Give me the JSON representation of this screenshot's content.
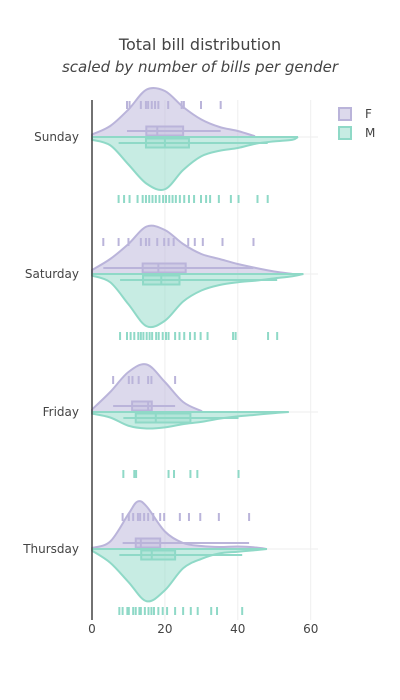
{
  "chart_data": {
    "type": "violin",
    "title": "Total bill distribution",
    "subtitle": "scaled by number of bills per gender",
    "xlabel": "",
    "ylabel": "",
    "xlim": [
      0,
      62
    ],
    "xticks": [
      0,
      20,
      40,
      60
    ],
    "categories": [
      "Sunday",
      "Saturday",
      "Friday",
      "Thursday"
    ],
    "legend": {
      "position": "top-right",
      "entries": [
        "F",
        "M"
      ]
    },
    "colors": {
      "F": "#bab4da",
      "M": "#8fd9c7",
      "axis": "#444444",
      "grid": "#eeeeee"
    },
    "series": [
      {
        "name": "F",
        "side": "positive",
        "groups": [
          {
            "day": "Sunday",
            "min": 9.6,
            "q1": 14.9,
            "median": 17.9,
            "q3": 25.0,
            "max": 35.3,
            "density_x": [
              0,
              5,
              10,
              15,
              20,
              25,
              30,
              35,
              40,
              44.5
            ],
            "density_h": [
              0.05,
              0.22,
              0.55,
              0.95,
              0.92,
              0.6,
              0.35,
              0.2,
              0.12,
              0.02
            ],
            "rug": [
              9.6,
              10.3,
              13.4,
              14.8,
              15.4,
              16.4,
              17.3,
              18.2,
              20.9,
              24.6,
              25.2,
              29.9,
              35.3
            ]
          },
          {
            "day": "Saturday",
            "min": 3.1,
            "q1": 13.9,
            "median": 18.2,
            "q3": 25.7,
            "max": 44.3,
            "density_x": [
              0,
              5,
              10,
              15,
              20,
              25,
              30,
              35,
              40,
              45,
              50,
              55
            ],
            "density_h": [
              0.08,
              0.3,
              0.6,
              0.95,
              0.88,
              0.6,
              0.4,
              0.3,
              0.2,
              0.12,
              0.05,
              0.0
            ],
            "rug": [
              3.1,
              7.3,
              10.0,
              13.4,
              14.8,
              15.7,
              17.9,
              19.8,
              21.0,
              22.4,
              26.4,
              28.2,
              30.4,
              35.8,
              44.3
            ]
          },
          {
            "day": "Friday",
            "min": 5.8,
            "q1": 11.0,
            "median": 15.4,
            "q3": 16.4,
            "max": 22.8,
            "density_x": [
              0,
              5,
              10,
              15,
              20,
              25,
              30
            ],
            "density_h": [
              0.05,
              0.4,
              0.8,
              0.95,
              0.6,
              0.2,
              0.02
            ],
            "rug": [
              5.8,
              10.1,
              11.1,
              12.8,
              15.4,
              16.3,
              22.8
            ]
          },
          {
            "day": "Thursday",
            "min": 8.4,
            "q1": 12.0,
            "median": 13.4,
            "q3": 18.7,
            "max": 43.1,
            "density_x": [
              0,
              5,
              10,
              12.5,
              15,
              20,
              25,
              30,
              35,
              40,
              45,
              48
            ],
            "density_h": [
              0.02,
              0.15,
              0.7,
              0.95,
              0.85,
              0.35,
              0.12,
              0.06,
              0.04,
              0.05,
              0.03,
              0.0
            ],
            "rug": [
              8.4,
              10.1,
              11.3,
              12.6,
              13.2,
              14.3,
              15.4,
              16.8,
              18.7,
              19.8,
              24.1,
              26.6,
              29.7,
              34.8,
              43.1
            ]
          }
        ]
      },
      {
        "name": "M",
        "side": "negative",
        "groups": [
          {
            "day": "Sunday",
            "min": 7.3,
            "q1": 14.8,
            "median": 20.0,
            "q3": 26.6,
            "max": 48.2,
            "density_x": [
              0,
              5,
              10,
              15,
              20,
              25,
              30,
              35,
              40,
              45,
              50,
              55,
              56.5
            ],
            "density_h": [
              0.05,
              0.15,
              0.5,
              0.85,
              0.95,
              0.6,
              0.35,
              0.25,
              0.2,
              0.12,
              0.08,
              0.05,
              0.0
            ],
            "rug": [
              7.3,
              8.8,
              10.3,
              12.5,
              13.9,
              14.8,
              15.7,
              16.6,
              17.5,
              18.5,
              19.5,
              20.3,
              21.2,
              22.1,
              23.0,
              24.1,
              25.3,
              26.6,
              28.0,
              29.9,
              31.3,
              32.4,
              34.8,
              38.1,
              40.2,
              45.4,
              48.2
            ]
          },
          {
            "day": "Saturday",
            "min": 7.7,
            "q1": 14.0,
            "median": 19.0,
            "q3": 24.0,
            "max": 50.8,
            "density_x": [
              0,
              5,
              10,
              15,
              20,
              25,
              30,
              35,
              40,
              45,
              50,
              55,
              58
            ],
            "density_h": [
              0.03,
              0.15,
              0.55,
              0.95,
              0.85,
              0.5,
              0.3,
              0.2,
              0.15,
              0.12,
              0.08,
              0.04,
              0.0
            ],
            "rug": [
              7.7,
              9.6,
              10.6,
              11.6,
              12.7,
              13.4,
              14.1,
              15.0,
              15.8,
              16.5,
              17.6,
              18.3,
              19.4,
              20.3,
              21.0,
              22.8,
              24.0,
              25.3,
              26.9,
              28.2,
              29.8,
              31.7,
              38.7,
              39.4,
              48.3,
              50.8
            ]
          },
          {
            "day": "Friday",
            "min": 8.6,
            "q1": 12.0,
            "median": 17.5,
            "q3": 27.0,
            "max": 40.2,
            "density_x": [
              0,
              5,
              10,
              15,
              20,
              25,
              30,
              35,
              40,
              45,
              50,
              54
            ],
            "density_h": [
              0.03,
              0.1,
              0.25,
              0.3,
              0.28,
              0.22,
              0.18,
              0.12,
              0.08,
              0.05,
              0.02,
              0.0
            ],
            "rug": [
              8.6,
              11.6,
              12.1,
              21.0,
              22.5,
              27.0,
              28.9,
              40.2
            ]
          },
          {
            "day": "Thursday",
            "min": 7.5,
            "q1": 13.5,
            "median": 16.4,
            "q3": 22.8,
            "max": 41.2,
            "density_x": [
              0,
              5,
              10,
              15,
              20,
              25,
              30,
              35,
              40,
              45,
              48
            ],
            "density_h": [
              0.03,
              0.25,
              0.6,
              0.95,
              0.75,
              0.35,
              0.18,
              0.08,
              0.05,
              0.02,
              0.0
            ],
            "rug": [
              7.5,
              8.4,
              9.7,
              10.1,
              11.3,
              12.0,
              13.0,
              13.4,
              14.5,
              15.5,
              16.3,
              17.0,
              18.2,
              19.4,
              20.6,
              22.8,
              25.0,
              27.1,
              29.0,
              32.7,
              34.3,
              41.2
            ]
          }
        ]
      }
    ]
  }
}
